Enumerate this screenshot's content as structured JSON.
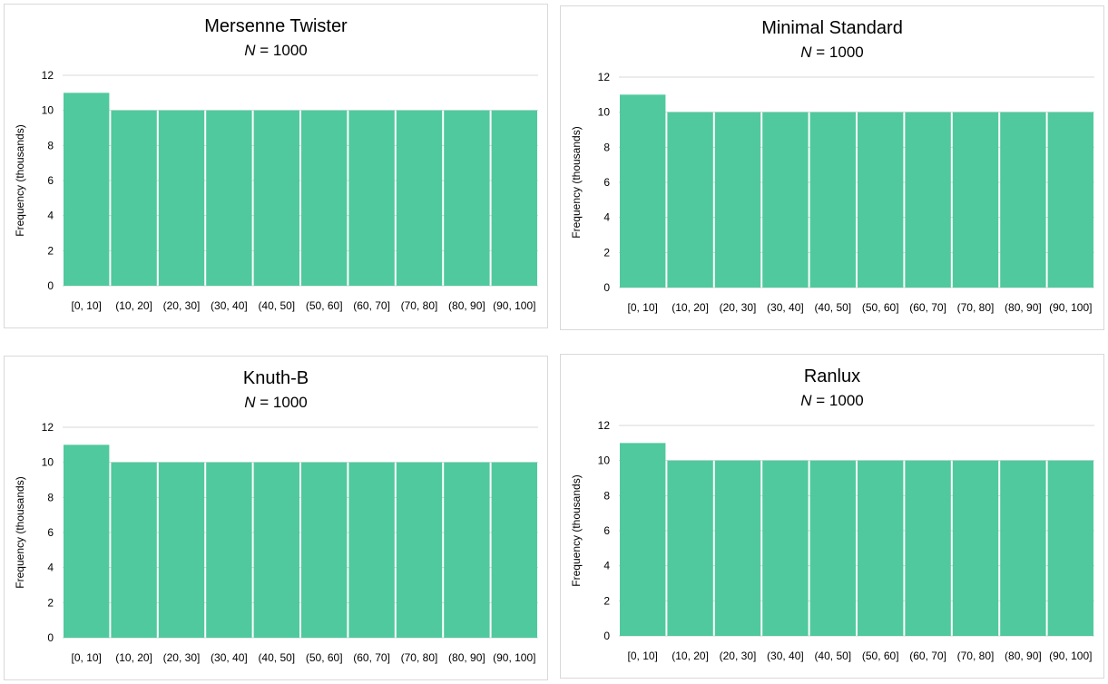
{
  "colors": {
    "bar": "#50c99e",
    "gridline": "#d9d9d9",
    "panel_border": "#d9d9d9"
  },
  "chart_data": [
    {
      "type": "bar",
      "title": "Mersenne Twister",
      "subtitle_var": "N",
      "subtitle_rest": " = 1000",
      "xlabel": "",
      "ylabel": "Frequency (thousands)",
      "categories": [
        "[0, 10]",
        "(10, 20]",
        "(20, 30]",
        "(30, 40]",
        "(40, 50]",
        "(50, 60]",
        "(60, 70]",
        "(70, 80]",
        "(80, 90]",
        "(90, 100]"
      ],
      "values": [
        11,
        10,
        10,
        10,
        10,
        10,
        10,
        10,
        10,
        10
      ],
      "ylim": [
        0,
        12
      ],
      "yticks": [
        0,
        2,
        4,
        6,
        8,
        10,
        12
      ],
      "grid": true,
      "legend": "none"
    },
    {
      "type": "bar",
      "title": "Minimal Standard",
      "subtitle_var": "N",
      "subtitle_rest": " = 1000",
      "xlabel": "",
      "ylabel": "Frequency (thousands)",
      "categories": [
        "[0, 10]",
        "(10, 20]",
        "(20, 30]",
        "(30, 40]",
        "(40, 50]",
        "(50, 60]",
        "(60, 70]",
        "(70, 80]",
        "(80, 90]",
        "(90, 100]"
      ],
      "values": [
        11,
        10,
        10,
        10,
        10,
        10,
        10,
        10,
        10,
        10
      ],
      "ylim": [
        0,
        12
      ],
      "yticks": [
        0,
        2,
        4,
        6,
        8,
        10,
        12
      ],
      "grid": true,
      "legend": "none"
    },
    {
      "type": "bar",
      "title": "Knuth-B",
      "subtitle_var": "N",
      "subtitle_rest": " = 1000",
      "xlabel": "",
      "ylabel": "Frequency (thousands)",
      "categories": [
        "[0, 10]",
        "(10, 20]",
        "(20, 30]",
        "(30, 40]",
        "(40, 50]",
        "(50, 60]",
        "(60, 70]",
        "(70, 80]",
        "(80, 90]",
        "(90, 100]"
      ],
      "values": [
        11,
        10,
        10,
        10,
        10,
        10,
        10,
        10,
        10,
        10
      ],
      "ylim": [
        0,
        12
      ],
      "yticks": [
        0,
        2,
        4,
        6,
        8,
        10,
        12
      ],
      "grid": true,
      "legend": "none"
    },
    {
      "type": "bar",
      "title": "Ranlux",
      "subtitle_var": "N",
      "subtitle_rest": " = 1000",
      "xlabel": "",
      "ylabel": "Frequency (thousands)",
      "categories": [
        "[0, 10]",
        "(10, 20]",
        "(20, 30]",
        "(30, 40]",
        "(40, 50]",
        "(50, 60]",
        "(60, 70]",
        "(70, 80]",
        "(80, 90]",
        "(90, 100]"
      ],
      "values": [
        11,
        10,
        10,
        10,
        10,
        10,
        10,
        10,
        10,
        10
      ],
      "ylim": [
        0,
        12
      ],
      "yticks": [
        0,
        2,
        4,
        6,
        8,
        10,
        12
      ],
      "grid": true,
      "legend": "none"
    }
  ]
}
